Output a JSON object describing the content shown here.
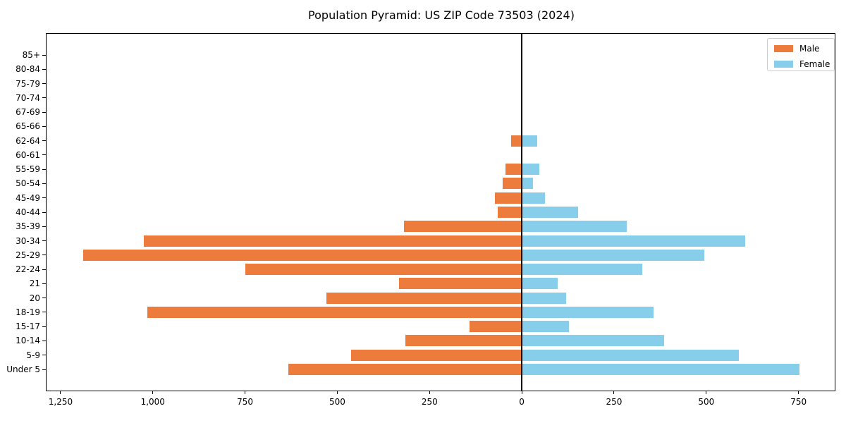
{
  "title": "Population Pyramid: US ZIP Code 73503 (2024)",
  "legend": {
    "male_label": "Male",
    "female_label": "Female",
    "position": "upper right"
  },
  "colors": {
    "male": "#ED7B3C",
    "female": "#87CEEB",
    "axis_line": "#000000",
    "legend_border": "#CCCCCC",
    "background": "#FFFFFF"
  },
  "chart_data": {
    "type": "bar",
    "variant": "population-pyramid",
    "title": "Population Pyramid: US ZIP Code 73503 (2024)",
    "xlabel": "",
    "ylabel": "",
    "grid": false,
    "zero_line": true,
    "legend_position": "upper right",
    "categories_order": "top-to-bottom",
    "categories": [
      "85+",
      "80-84",
      "75-79",
      "70-74",
      "67-69",
      "65-66",
      "62-64",
      "60-61",
      "55-59",
      "50-54",
      "45-49",
      "40-44",
      "35-39",
      "30-34",
      "25-29",
      "22-24",
      "21",
      "20",
      "18-19",
      "15-17",
      "10-14",
      "5-9",
      "Under 5"
    ],
    "series": [
      {
        "name": "Male",
        "side": "left",
        "color": "#ED7B3C",
        "values": [
          0,
          0,
          0,
          0,
          0,
          0,
          28,
          0,
          44,
          52,
          72,
          66,
          320,
          1025,
          1188,
          750,
          333,
          530,
          1015,
          142,
          316,
          462,
          633
        ]
      },
      {
        "name": "Female",
        "side": "right",
        "color": "#87CEEB",
        "values": [
          0,
          0,
          0,
          0,
          0,
          0,
          41,
          0,
          47,
          30,
          63,
          152,
          285,
          605,
          494,
          327,
          98,
          121,
          358,
          127,
          385,
          589,
          753
        ]
      }
    ],
    "xlim": [
      -1290,
      850
    ],
    "x_ticks": [
      {
        "value": -1250,
        "label": "1,250"
      },
      {
        "value": -1000,
        "label": "1,000"
      },
      {
        "value": -750,
        "label": "750"
      },
      {
        "value": -500,
        "label": "500"
      },
      {
        "value": -250,
        "label": "250"
      },
      {
        "value": 0,
        "label": "0"
      },
      {
        "value": 250,
        "label": "250"
      },
      {
        "value": 500,
        "label": "500"
      },
      {
        "value": 750,
        "label": "750"
      }
    ]
  }
}
